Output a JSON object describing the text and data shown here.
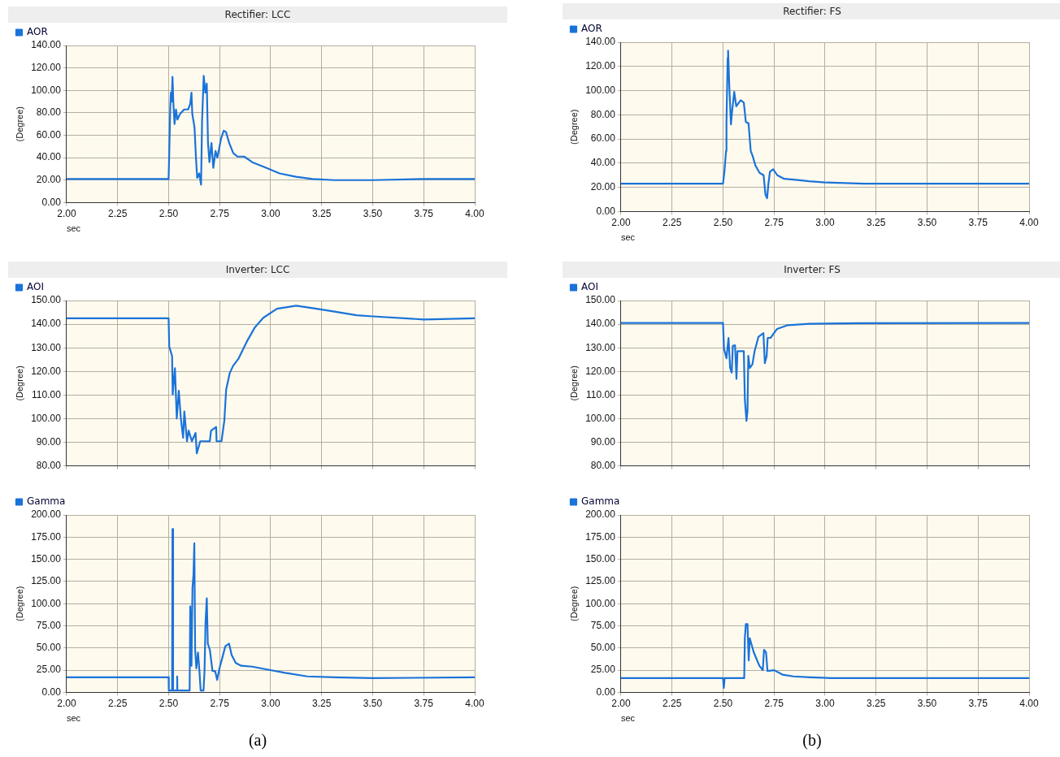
{
  "chart_data": [
    {
      "type": "line",
      "title": "Rectifier: LCC",
      "xlabel": "sec",
      "ylabel": "(Degree)",
      "xlim": [
        2,
        4
      ],
      "ylim": [
        0,
        140
      ],
      "grid": true,
      "legend": "top left",
      "marker": "none",
      "xticks": [
        {
          "value": 2,
          "label": "2.00"
        },
        {
          "value": 2.25,
          "label": "2.25"
        },
        {
          "value": 2.5,
          "label": "2.50"
        },
        {
          "value": 2.75,
          "label": "2.75"
        },
        {
          "value": 3,
          "label": "3.00"
        },
        {
          "value": 3.25,
          "label": "3.25"
        },
        {
          "value": 3.5,
          "label": "3.50"
        },
        {
          "value": 3.75,
          "label": "3.75"
        },
        {
          "value": 4,
          "label": "4.00"
        }
      ],
      "yticks": [
        {
          "value": 0,
          "label": "0.00"
        },
        {
          "value": 20,
          "label": "20.00"
        },
        {
          "value": 40,
          "label": "40.00"
        },
        {
          "value": 60,
          "label": "60.00"
        },
        {
          "value": 80,
          "label": "80.00"
        },
        {
          "value": 100,
          "label": "100.00"
        },
        {
          "value": 120,
          "label": "120.00"
        },
        {
          "value": 140,
          "label": "140.00"
        }
      ],
      "x": [
        2,
        2.5,
        2.503,
        2.508,
        2.511,
        2.515,
        2.519,
        2.523,
        2.529,
        2.536,
        2.543,
        2.556,
        2.576,
        2.596,
        2.606,
        2.612,
        2.616,
        2.627,
        2.634,
        2.64,
        2.65,
        2.659,
        2.664,
        2.672,
        2.68,
        2.687,
        2.693,
        2.7,
        2.71,
        2.719,
        2.73,
        2.739,
        2.757,
        2.77,
        2.781,
        2.797,
        2.817,
        2.837,
        2.87,
        2.91,
        2.977,
        3.044,
        3.124,
        3.205,
        3.311,
        3.5,
        3.75,
        4
      ],
      "series": [
        {
          "name": "AOR",
          "color": "#1a73d9",
          "values": [
            21,
            21,
            43,
            84,
            98,
            90,
            112,
            90,
            70,
            83,
            74,
            79,
            83,
            83,
            88,
            98,
            79,
            67,
            40,
            22,
            26,
            16,
            73,
            113,
            98,
            106,
            53,
            36,
            53,
            31,
            46,
            40,
            57,
            64,
            63,
            53,
            44,
            41,
            41,
            36,
            31,
            26,
            23,
            21,
            20,
            20,
            21,
            21
          ]
        }
      ]
    },
    {
      "type": "line",
      "title": "Inverter: LCC",
      "ylabel": "(Degree)",
      "xlim": [
        2,
        4
      ],
      "ylim": [
        80,
        150
      ],
      "grid": true,
      "legend": "top left",
      "marker": "none",
      "tick_labels": "y",
      "xticks": [
        {
          "value": 2,
          "label": null
        },
        {
          "value": 2.25,
          "label": null
        },
        {
          "value": 2.5,
          "label": null
        },
        {
          "value": 2.75,
          "label": null
        },
        {
          "value": 3,
          "label": null
        },
        {
          "value": 3.25,
          "label": null
        },
        {
          "value": 3.5,
          "label": null
        },
        {
          "value": 3.75,
          "label": null
        },
        {
          "value": 4,
          "label": null
        }
      ],
      "yticks": [
        {
          "value": 80,
          "label": "80.00"
        },
        {
          "value": 90,
          "label": "90.00"
        },
        {
          "value": 100,
          "label": "100.00"
        },
        {
          "value": 110,
          "label": "110.00"
        },
        {
          "value": 120,
          "label": "120.00"
        },
        {
          "value": 130,
          "label": "130.00"
        },
        {
          "value": 140,
          "label": "140.00"
        },
        {
          "value": 150,
          "label": "150.00"
        }
      ],
      "x": [
        2,
        2.5,
        2.503,
        2.517,
        2.52,
        2.531,
        2.54,
        2.55,
        2.56,
        2.571,
        2.577,
        2.59,
        2.598,
        2.614,
        2.632,
        2.638,
        2.655,
        2.702,
        2.708,
        2.733,
        2.735,
        2.759,
        2.773,
        2.782,
        2.8,
        2.816,
        2.843,
        2.883,
        2.923,
        2.964,
        3.031,
        3.125,
        3.206,
        3.313,
        3.421,
        3.5,
        3.75,
        4
      ],
      "series": [
        {
          "name": "AOI",
          "color": "#1a73d9",
          "values": [
            142.5,
            142.5,
            130.6,
            126.5,
            110.3,
            121.4,
            100.1,
            111.8,
            100.1,
            92,
            103.1,
            90.5,
            95,
            90.5,
            94,
            85.4,
            90.5,
            90.5,
            95,
            96.5,
            90.5,
            90.5,
            99.1,
            112.3,
            119.4,
            122.4,
            125.5,
            132.6,
            138.7,
            142.7,
            146.5,
            147.8,
            146.8,
            145.3,
            143.8,
            143.3,
            142,
            142.5
          ]
        }
      ]
    },
    {
      "type": "line",
      "xlabel": "sec",
      "ylabel": "(Degree)",
      "xlim": [
        2,
        4
      ],
      "ylim": [
        0,
        200
      ],
      "grid": true,
      "legend": "top left",
      "marker": "none",
      "annotations": [
        "(a)"
      ],
      "xticks": [
        {
          "value": 2,
          "label": "2.00"
        },
        {
          "value": 2.25,
          "label": "2.25"
        },
        {
          "value": 2.5,
          "label": "2.50"
        },
        {
          "value": 2.75,
          "label": "2.75"
        },
        {
          "value": 3,
          "label": "3.00"
        },
        {
          "value": 3.25,
          "label": "3.25"
        },
        {
          "value": 3.5,
          "label": "3.50"
        },
        {
          "value": 3.75,
          "label": "3.75"
        },
        {
          "value": 4,
          "label": "4.00"
        }
      ],
      "yticks": [
        {
          "value": 0,
          "label": "0.00"
        },
        {
          "value": 25,
          "label": "25.00"
        },
        {
          "value": 50,
          "label": "50.00"
        },
        {
          "value": 75,
          "label": "75.00"
        },
        {
          "value": 100,
          "label": "100.00"
        },
        {
          "value": 125,
          "label": "125.00"
        },
        {
          "value": 150,
          "label": "150.00"
        },
        {
          "value": 175,
          "label": "175.00"
        },
        {
          "value": 200,
          "label": "200.00"
        }
      ],
      "x": [
        2,
        2.5,
        2.501,
        2.517,
        2.519,
        2.522,
        2.54,
        2.542,
        2.543,
        2.603,
        2.606,
        2.612,
        2.617,
        2.622,
        2.626,
        2.63,
        2.636,
        2.644,
        2.651,
        2.657,
        2.671,
        2.676,
        2.681,
        2.687,
        2.692,
        2.702,
        2.715,
        2.728,
        2.738,
        2.749,
        2.762,
        2.778,
        2.796,
        2.809,
        2.829,
        2.856,
        2.91,
        2.977,
        3.071,
        3.179,
        3.313,
        3.5,
        4
      ],
      "series": [
        {
          "name": "Gamma",
          "color": "#1a73d9",
          "values": [
            17,
            17,
            2,
            2,
            184,
            2,
            2,
            18,
            2,
            2,
            97,
            30,
            118,
            133,
            168,
            48,
            27,
            45,
            24,
            2,
            2,
            24,
            79,
            106,
            55,
            48,
            24,
            24,
            14,
            27,
            38,
            52,
            55,
            42,
            33,
            30,
            29,
            26,
            22,
            18,
            17,
            16,
            17
          ]
        }
      ]
    },
    {
      "type": "line",
      "title": "Rectifier: FS",
      "xlabel": "sec",
      "ylabel": "(Degree)",
      "xlim": [
        2,
        4
      ],
      "ylim": [
        0,
        140
      ],
      "grid": true,
      "legend": "top left",
      "marker": "none",
      "xticks": [
        {
          "value": 2,
          "label": "2.00"
        },
        {
          "value": 2.25,
          "label": "2.25"
        },
        {
          "value": 2.5,
          "label": "2.50"
        },
        {
          "value": 2.75,
          "label": "2.75"
        },
        {
          "value": 3,
          "label": "3.00"
        },
        {
          "value": 3.25,
          "label": "3.25"
        },
        {
          "value": 3.5,
          "label": "3.50"
        },
        {
          "value": 3.75,
          "label": "3.75"
        },
        {
          "value": 4,
          "label": "4.00"
        }
      ],
      "yticks": [
        {
          "value": 0,
          "label": "0.00"
        },
        {
          "value": 20,
          "label": "20.00"
        },
        {
          "value": 40,
          "label": "40.00"
        },
        {
          "value": 60,
          "label": "60.00"
        },
        {
          "value": 80,
          "label": "80.00"
        },
        {
          "value": 100,
          "label": "100.00"
        },
        {
          "value": 120,
          "label": "120.00"
        },
        {
          "value": 140,
          "label": "140.00"
        }
      ],
      "x": [
        2,
        2.5,
        2.507,
        2.515,
        2.517,
        2.52,
        2.523,
        2.525,
        2.531,
        2.539,
        2.544,
        2.555,
        2.565,
        2.578,
        2.587,
        2.602,
        2.612,
        2.625,
        2.636,
        2.645,
        2.659,
        2.679,
        2.699,
        2.708,
        2.716,
        2.722,
        2.73,
        2.746,
        2.766,
        2.8,
        2.867,
        2.921,
        3.001,
        3.19,
        4
      ],
      "series": [
        {
          "name": "AOR",
          "color": "#1a73d9",
          "values": [
            23,
            23,
            33,
            50,
            73,
            101,
            127,
            133,
            103,
            72,
            82,
            99,
            87,
            90,
            92,
            90,
            74,
            73,
            50,
            46,
            38,
            32,
            30,
            14,
            11,
            22,
            33,
            35,
            30,
            27,
            26,
            25,
            24,
            23,
            23
          ]
        }
      ]
    },
    {
      "type": "line",
      "title": "Inverter: FS",
      "ylabel": "(Degree)",
      "xlim": [
        2,
        4
      ],
      "ylim": [
        80,
        150
      ],
      "grid": true,
      "legend": "top left",
      "marker": "none",
      "tick_labels": "y",
      "xticks": [
        {
          "value": 2,
          "label": null
        },
        {
          "value": 2.25,
          "label": null
        },
        {
          "value": 2.5,
          "label": null
        },
        {
          "value": 2.75,
          "label": null
        },
        {
          "value": 3,
          "label": null
        },
        {
          "value": 3.25,
          "label": null
        },
        {
          "value": 3.5,
          "label": null
        },
        {
          "value": 3.75,
          "label": null
        },
        {
          "value": 4,
          "label": null
        }
      ],
      "yticks": [
        {
          "value": 80,
          "label": "80.00"
        },
        {
          "value": 90,
          "label": "90.00"
        },
        {
          "value": 100,
          "label": "100.00"
        },
        {
          "value": 110,
          "label": "110.00"
        },
        {
          "value": 120,
          "label": "120.00"
        },
        {
          "value": 130,
          "label": "130.00"
        },
        {
          "value": 140,
          "label": "140.00"
        },
        {
          "value": 150,
          "label": "150.00"
        }
      ],
      "x": [
        2,
        2.5,
        2.505,
        2.517,
        2.527,
        2.535,
        2.543,
        2.548,
        2.559,
        2.566,
        2.571,
        2.602,
        2.607,
        2.615,
        2.62,
        2.624,
        2.631,
        2.644,
        2.655,
        2.674,
        2.698,
        2.705,
        2.714,
        2.719,
        2.733,
        2.765,
        2.818,
        2.925,
        3.166,
        4
      ],
      "series": [
        {
          "name": "AOI",
          "color": "#1a73d9",
          "values": [
            140.5,
            140.5,
            129.6,
            125.6,
            134.2,
            121.5,
            119.5,
            130.8,
            131.1,
            116.9,
            128.6,
            128.6,
            108.3,
            99.1,
            103.2,
            126.6,
            121.5,
            123,
            128.6,
            134.7,
            136.2,
            123.5,
            126.6,
            134.2,
            134.2,
            138,
            139.6,
            140.2,
            140.4,
            140.5
          ]
        }
      ]
    },
    {
      "type": "line",
      "xlabel": "sec",
      "ylabel": "(Degree)",
      "xlim": [
        2,
        4
      ],
      "ylim": [
        0,
        200
      ],
      "grid": true,
      "legend": "top left",
      "marker": "none",
      "annotations": [
        "(b)"
      ],
      "xticks": [
        {
          "value": 2,
          "label": "2.00"
        },
        {
          "value": 2.25,
          "label": "2.25"
        },
        {
          "value": 2.5,
          "label": "2.50"
        },
        {
          "value": 2.75,
          "label": "2.75"
        },
        {
          "value": 3,
          "label": "3.00"
        },
        {
          "value": 3.25,
          "label": "3.25"
        },
        {
          "value": 3.5,
          "label": "3.50"
        },
        {
          "value": 3.75,
          "label": "3.75"
        },
        {
          "value": 4,
          "label": "4.00"
        }
      ],
      "yticks": [
        {
          "value": 0,
          "label": "0.00"
        },
        {
          "value": 25,
          "label": "25.00"
        },
        {
          "value": 50,
          "label": "50.00"
        },
        {
          "value": 75,
          "label": "75.00"
        },
        {
          "value": 100,
          "label": "100.00"
        },
        {
          "value": 125,
          "label": "125.00"
        },
        {
          "value": 150,
          "label": "150.00"
        },
        {
          "value": 175,
          "label": "175.00"
        },
        {
          "value": 200,
          "label": "200.00"
        }
      ],
      "x": [
        2,
        2.5,
        2.504,
        2.508,
        2.604,
        2.607,
        2.612,
        2.62,
        2.626,
        2.631,
        2.651,
        2.678,
        2.695,
        2.701,
        2.711,
        2.718,
        2.751,
        2.791,
        2.845,
        2.925,
        3.032,
        4
      ],
      "series": [
        {
          "name": "Gamma",
          "color": "#1a73d9",
          "values": [
            16,
            16,
            5,
            16,
            16,
            61,
            77,
            77,
            36,
            61,
            45,
            30,
            25,
            48,
            45,
            24,
            25,
            20,
            18,
            17,
            16,
            16
          ]
        }
      ]
    }
  ]
}
